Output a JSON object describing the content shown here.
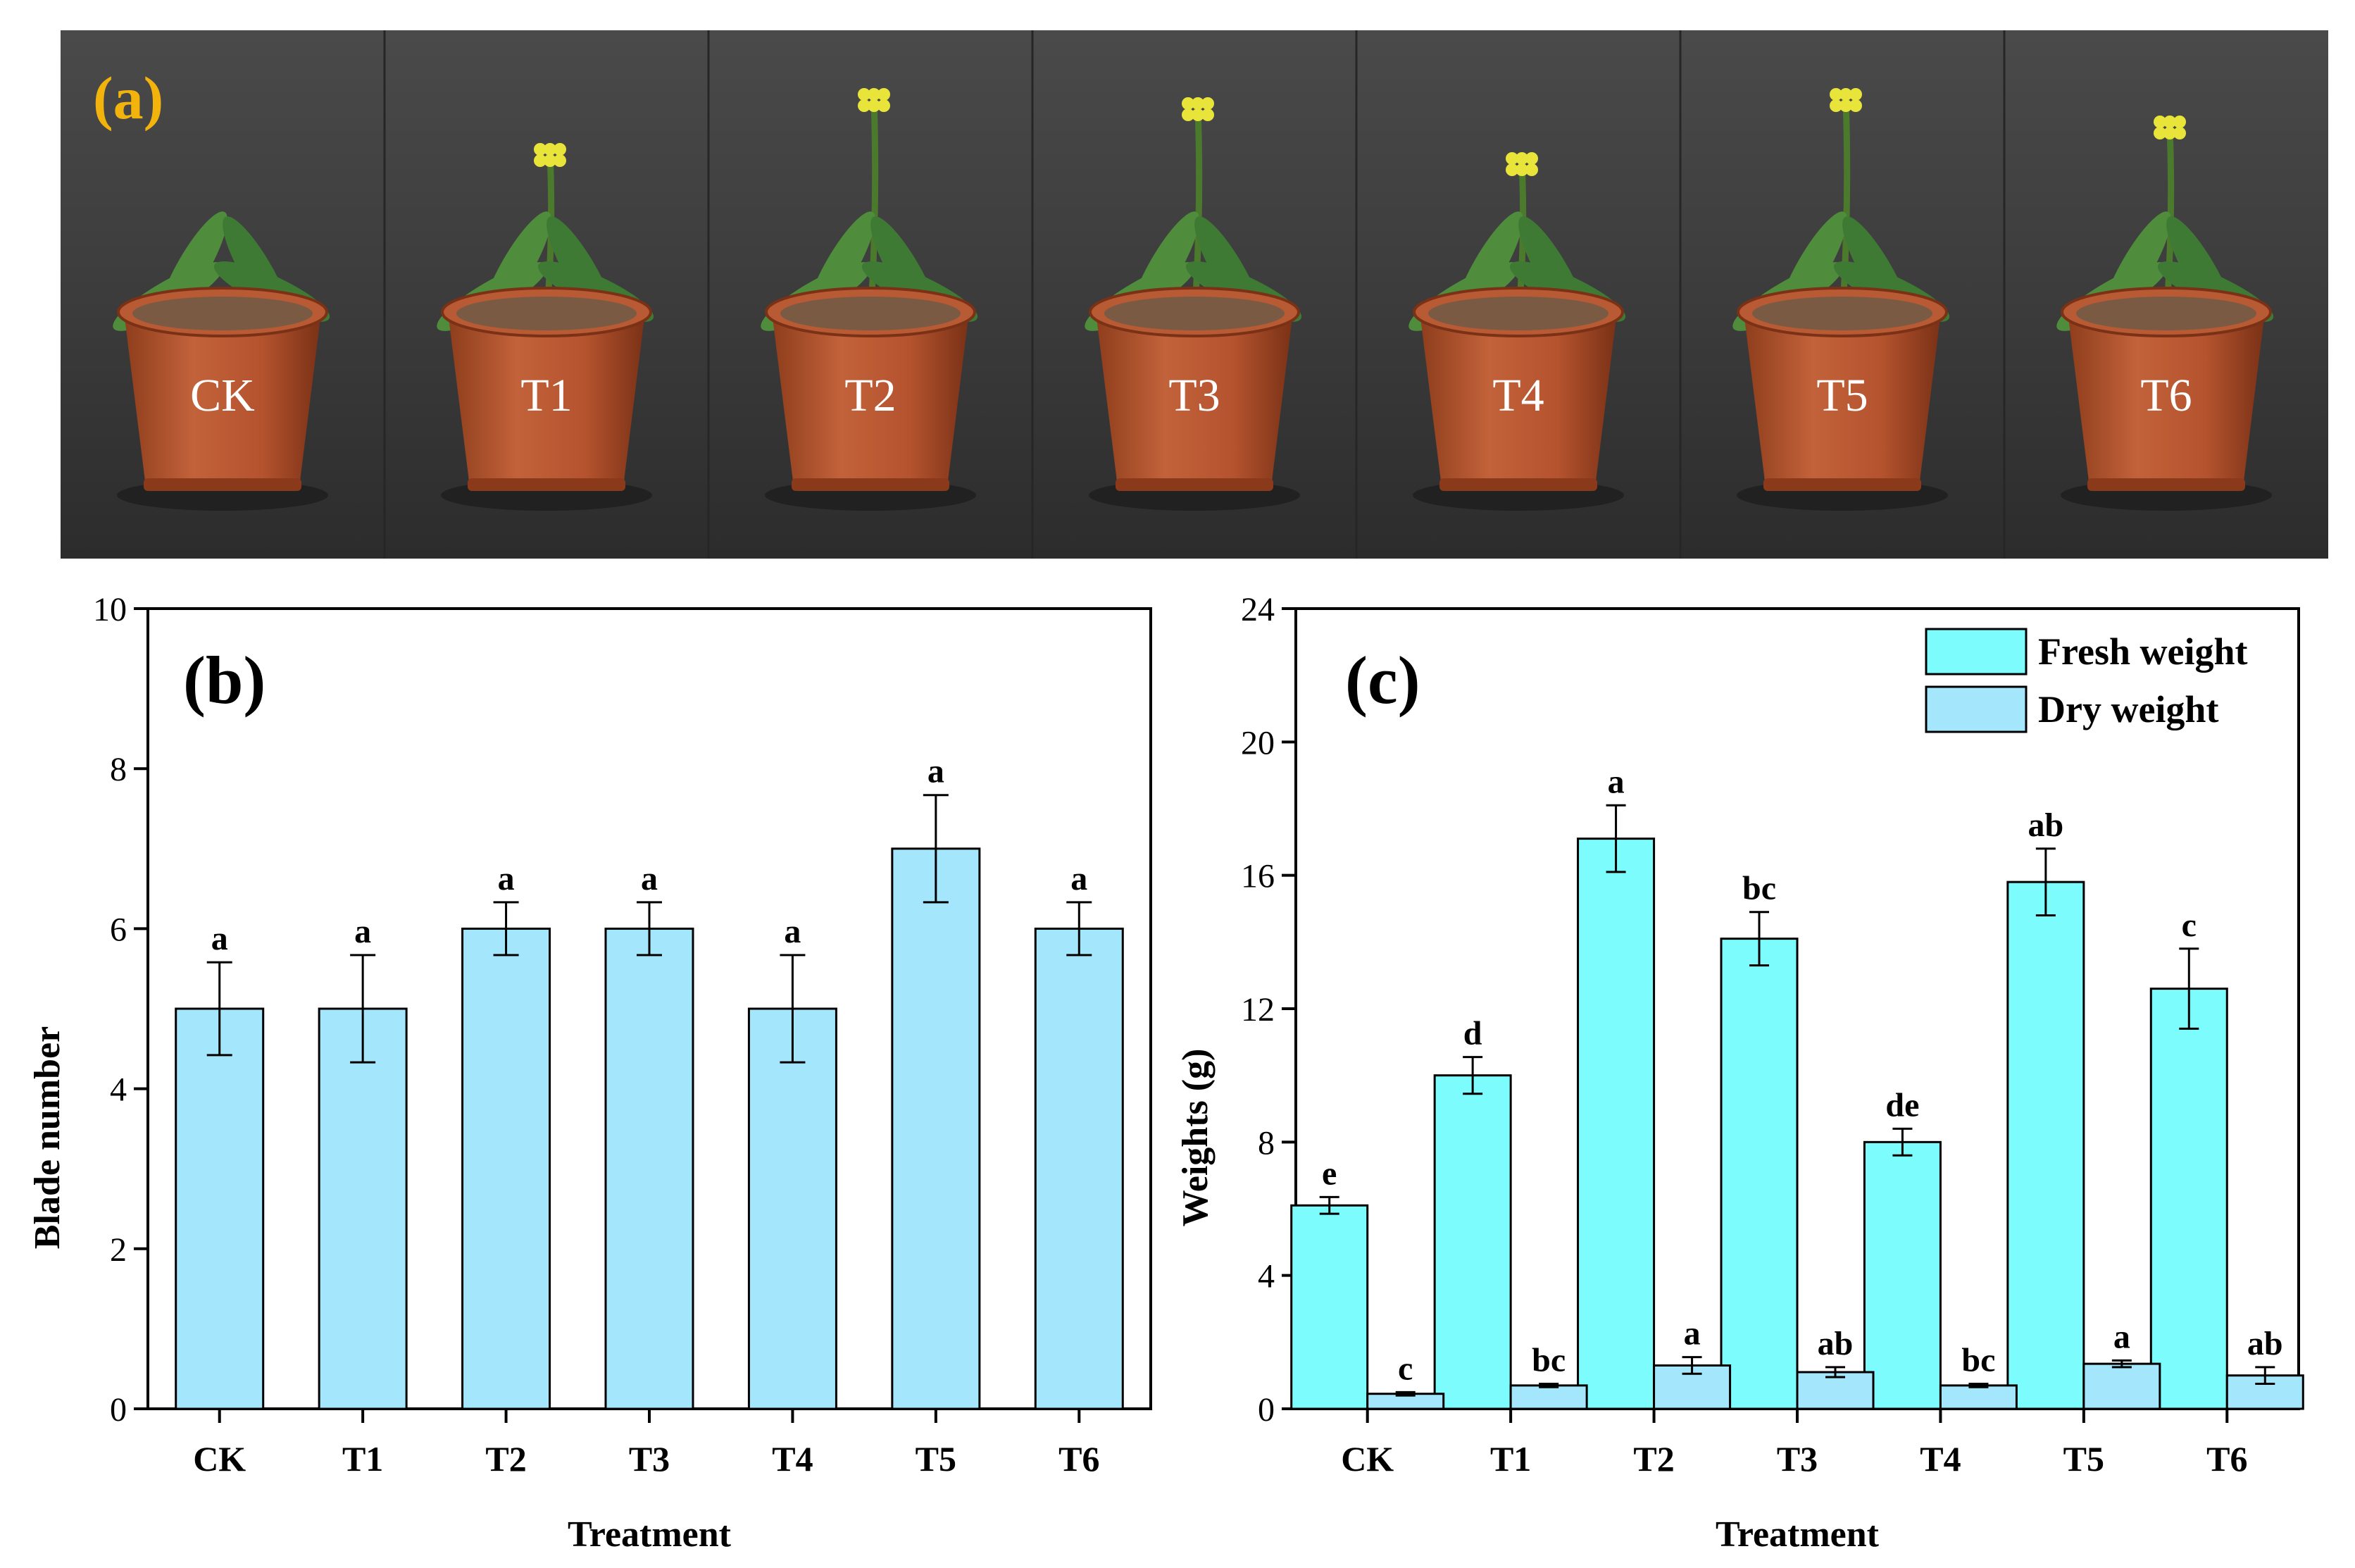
{
  "photo_panel": {
    "label": "(a)",
    "pots": [
      "CK",
      "T1",
      "T2",
      "T3",
      "T4",
      "T5",
      "T6"
    ]
  },
  "chart_data": [
    {
      "panel_label": "(b)",
      "type": "bar",
      "categories": [
        "CK",
        "T1",
        "T2",
        "T3",
        "T4",
        "T5",
        "T6"
      ],
      "series": [
        {
          "values": [
            5,
            5,
            6,
            6,
            5,
            7,
            6
          ],
          "errors": [
            0.58,
            0.67,
            0.33,
            0.33,
            0.67,
            0.67,
            0.33
          ],
          "letters": [
            "a",
            "a",
            "a",
            "a",
            "a",
            "a",
            "a"
          ],
          "color": "#a4e6fb"
        }
      ],
      "xlabel": "Treatment",
      "ylabel": "Blade number",
      "ylim": [
        0,
        10
      ],
      "yticks": [
        0,
        2,
        4,
        6,
        8,
        10
      ],
      "grid": false
    },
    {
      "panel_label": "(c)",
      "type": "bar",
      "categories": [
        "CK",
        "T1",
        "T2",
        "T3",
        "T4",
        "T5",
        "T6"
      ],
      "series": [
        {
          "name": "Fresh weight",
          "values": [
            6.1,
            10.0,
            17.1,
            14.1,
            8.0,
            15.8,
            12.6
          ],
          "errors": [
            0.25,
            0.55,
            1.0,
            0.8,
            0.4,
            1.0,
            1.2
          ],
          "letters": [
            "e",
            "d",
            "a",
            "bc",
            "de",
            "ab",
            "c"
          ],
          "color": "#7dfcfd"
        },
        {
          "name": "Dry weight",
          "values": [
            0.45,
            0.7,
            1.3,
            1.1,
            0.7,
            1.35,
            1.0
          ],
          "errors": [
            0.05,
            0.05,
            0.25,
            0.15,
            0.05,
            0.1,
            0.25
          ],
          "letters": [
            "c",
            "bc",
            "a",
            "ab",
            "bc",
            "a",
            "ab"
          ],
          "color": "#a4e6fb"
        }
      ],
      "xlabel": "Treatment",
      "ylabel": "Weights (g)",
      "ylim": [
        0,
        24
      ],
      "yticks": [
        0,
        4,
        8,
        12,
        16,
        20,
        24
      ],
      "legend": "top-right",
      "grid": false
    }
  ]
}
